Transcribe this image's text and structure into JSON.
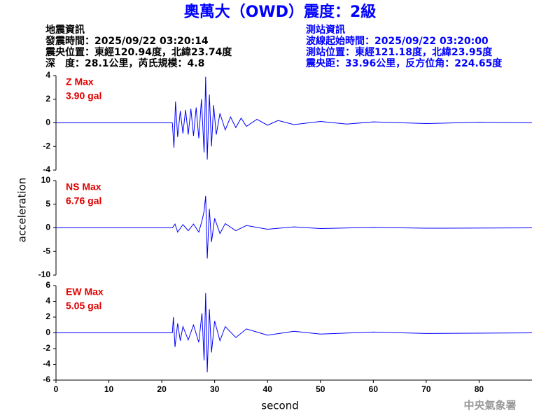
{
  "header": {
    "title": "奧萬大（OWD）震度：2級",
    "left": [
      "地震資訊",
      "發震時間：2025/09/22 03:20:14",
      "震央位置：東經120.94度，北緯23.74度",
      "深　度：28.1公里，芮氏規模：4.8"
    ],
    "right": [
      "測站資訊",
      "波線起始時間：2025/09/22 03:20:00",
      "測站位置：東經121.18度，北緯23.95度",
      "震央距：33.96公里，反方位角：224.65度"
    ],
    "ylabel": "acceleration",
    "xlabel": "second",
    "footer": "中央氣象署"
  },
  "chart_data": [
    {
      "type": "line",
      "color": "#0000ff",
      "annotations": [
        "Z Max",
        "3.90 gal"
      ],
      "x": [
        0,
        22,
        22.3,
        22.6,
        23,
        23.5,
        24,
        24.5,
        25,
        25.5,
        26,
        26.5,
        27,
        27.5,
        28,
        28.3,
        28.6,
        29,
        29.4,
        29.8,
        30.3,
        31,
        32,
        33,
        34,
        35,
        36,
        38,
        40,
        42,
        45,
        50,
        55,
        60,
        70,
        80,
        90
      ],
      "values": [
        0,
        0,
        -2.1,
        1.8,
        -1.2,
        1.0,
        -0.9,
        1.1,
        -1.0,
        1.2,
        -1.1,
        1.3,
        -1.3,
        2.0,
        -2.5,
        3.9,
        -3.1,
        2.4,
        -2.0,
        1.5,
        -1.0,
        0.8,
        -0.6,
        0.5,
        -0.4,
        0.4,
        -0.3,
        0.3,
        -0.2,
        0.2,
        -0.15,
        0.12,
        -0.1,
        0.08,
        -0.06,
        0.05,
        0
      ],
      "xlim": [
        0,
        90
      ],
      "ylim": [
        -4,
        4
      ],
      "yticks": [
        -4,
        -2,
        0,
        2,
        4
      ]
    },
    {
      "type": "line",
      "color": "#0000ff",
      "annotations": [
        "NS Max",
        "6.76 gal"
      ],
      "x": [
        0,
        22,
        22.5,
        23,
        24,
        25,
        26,
        27,
        27.6,
        28,
        28.3,
        28.6,
        29,
        29.4,
        30,
        31,
        32,
        34,
        36,
        40,
        45,
        50,
        60,
        70,
        90
      ],
      "values": [
        0,
        0,
        0.8,
        -0.9,
        0.7,
        -0.6,
        0.8,
        -0.9,
        1.5,
        3.5,
        6.76,
        -6.5,
        4.0,
        -3.0,
        2.0,
        -1.2,
        0.9,
        -0.6,
        0.5,
        -0.3,
        0.2,
        -0.15,
        0.1,
        -0.08,
        0
      ],
      "xlim": [
        0,
        90
      ],
      "ylim": [
        -10,
        10
      ],
      "yticks": [
        -10,
        -5,
        0,
        5,
        10
      ]
    },
    {
      "type": "line",
      "color": "#0000ff",
      "annotations": [
        "EW Max",
        "5.05 gal"
      ],
      "x": [
        0,
        22,
        22.2,
        22.5,
        23,
        23.5,
        24,
        25,
        26,
        27,
        27.6,
        28,
        28.3,
        28.6,
        29,
        29.4,
        30,
        31,
        32,
        34,
        36,
        40,
        45,
        50,
        60,
        70,
        90
      ],
      "values": [
        0,
        0,
        2.0,
        -1.8,
        1.2,
        -1.0,
        0.8,
        -0.9,
        1.0,
        -1.2,
        2.5,
        -3.5,
        5.05,
        -5.0,
        3.0,
        -2.5,
        1.5,
        -1.0,
        0.8,
        -0.6,
        0.5,
        -0.3,
        0.2,
        -0.15,
        0.1,
        -0.08,
        0
      ],
      "xlim": [
        0,
        90
      ],
      "ylim": [
        -6,
        6
      ],
      "yticks": [
        -6,
        -4,
        -2,
        0,
        2,
        4,
        6
      ],
      "xticks": [
        0,
        10,
        20,
        30,
        40,
        50,
        60,
        70,
        80
      ]
    }
  ]
}
